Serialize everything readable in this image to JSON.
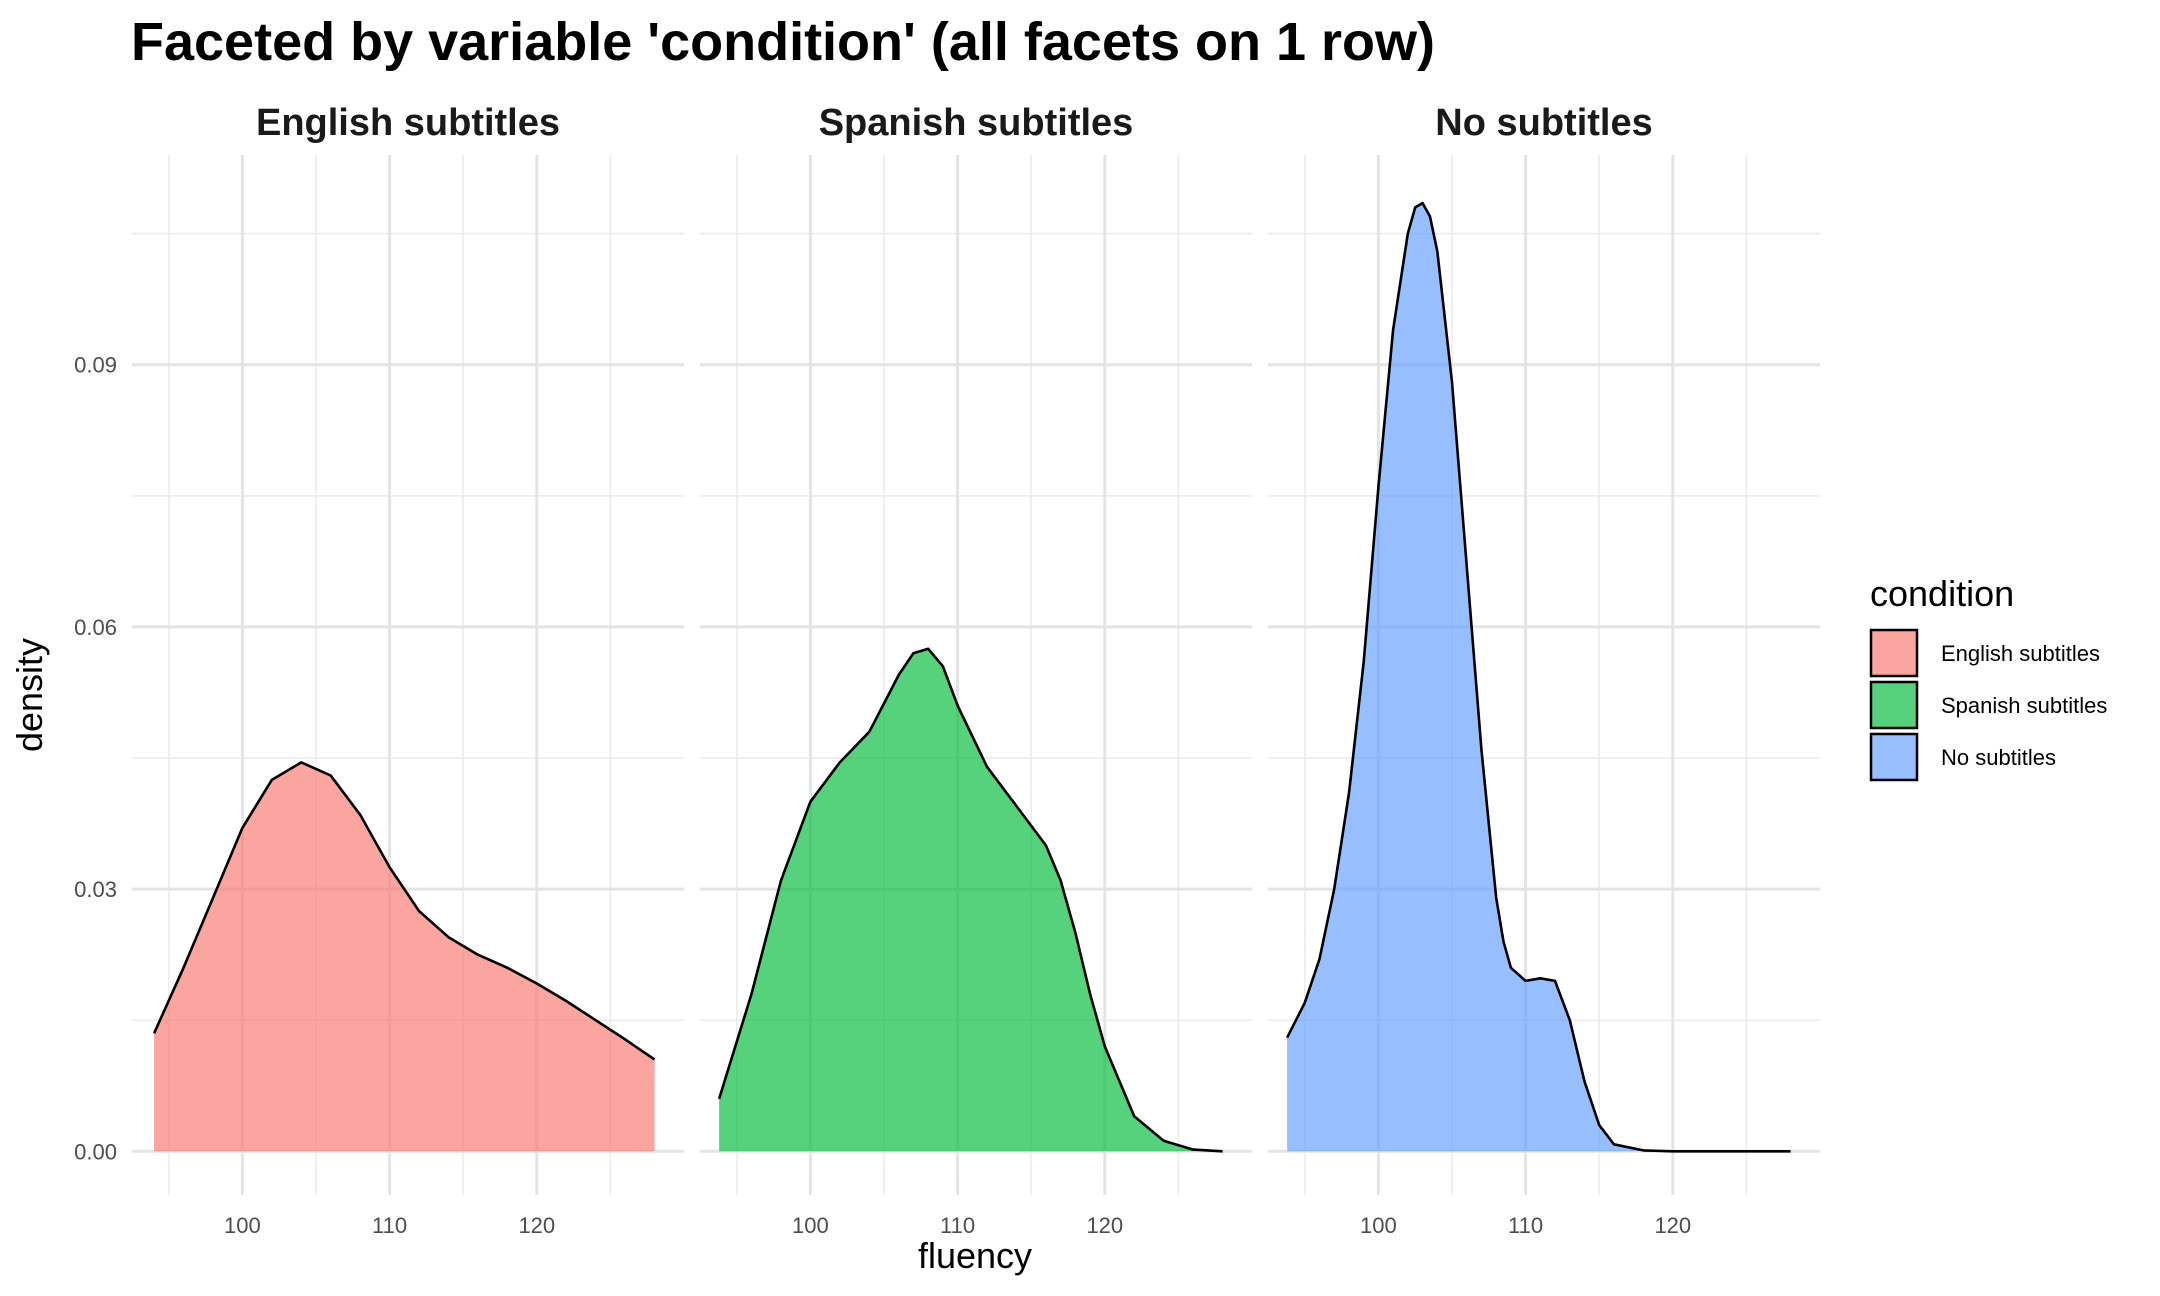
{
  "title": "Faceted by variable 'condition' (all facets on 1 row)",
  "chart_data": {
    "type": "area",
    "subtype": "density",
    "xlabel": "fluency",
    "ylabel": "density",
    "xlim": [
      92.5,
      130
    ],
    "ylim": [
      -0.005,
      0.114
    ],
    "x_ticks": [
      100,
      110,
      120
    ],
    "x_tick_labels": [
      "100",
      "110",
      "120"
    ],
    "y_ticks": [
      0,
      0.03,
      0.06,
      0.09
    ],
    "y_tick_labels": [
      "0.00",
      "0.03",
      "0.06",
      "0.09"
    ],
    "grid": true,
    "legend": {
      "title": "condition",
      "position": "right",
      "entries": [
        "English subtitles",
        "Spanish subtitles",
        "No subtitles"
      ]
    },
    "series": [
      {
        "name": "English subtitles",
        "color": "#f8766d",
        "x": [
          94,
          96,
          98,
          100,
          102,
          104,
          106,
          108,
          110,
          112,
          114,
          116,
          118,
          120,
          122,
          124,
          126,
          128
        ],
        "values": [
          0.0135,
          0.021,
          0.029,
          0.037,
          0.0425,
          0.0445,
          0.043,
          0.0385,
          0.0325,
          0.0275,
          0.0245,
          0.0225,
          0.021,
          0.0192,
          0.0172,
          0.015,
          0.0128,
          0.0105
        ]
      },
      {
        "name": "Spanish subtitles",
        "color": "#00ba38",
        "x": [
          93.8,
          96,
          98,
          100,
          102,
          104,
          106,
          107,
          108,
          109,
          110,
          112,
          114,
          116,
          117,
          118,
          119,
          120,
          122,
          124,
          126,
          128
        ],
        "values": [
          0.006,
          0.018,
          0.031,
          0.04,
          0.0445,
          0.048,
          0.0545,
          0.057,
          0.0575,
          0.0555,
          0.051,
          0.044,
          0.0395,
          0.035,
          0.031,
          0.025,
          0.018,
          0.012,
          0.004,
          0.0012,
          0.0002,
          0.0
        ]
      },
      {
        "name": "No subtitles",
        "color": "#619cff",
        "x": [
          93.8,
          95,
          96,
          97,
          98,
          99,
          100,
          101,
          102,
          102.5,
          103,
          103.5,
          104,
          105,
          106,
          107,
          108,
          108.5,
          109,
          110,
          111,
          112,
          113,
          114,
          115,
          116,
          118,
          120,
          124,
          128
        ],
        "values": [
          0.013,
          0.017,
          0.022,
          0.03,
          0.041,
          0.056,
          0.076,
          0.094,
          0.105,
          0.108,
          0.1085,
          0.107,
          0.103,
          0.088,
          0.067,
          0.046,
          0.029,
          0.024,
          0.021,
          0.0195,
          0.0198,
          0.0195,
          0.015,
          0.008,
          0.003,
          0.0008,
          0.0001,
          0.0,
          0.0,
          0.0
        ]
      }
    ]
  }
}
